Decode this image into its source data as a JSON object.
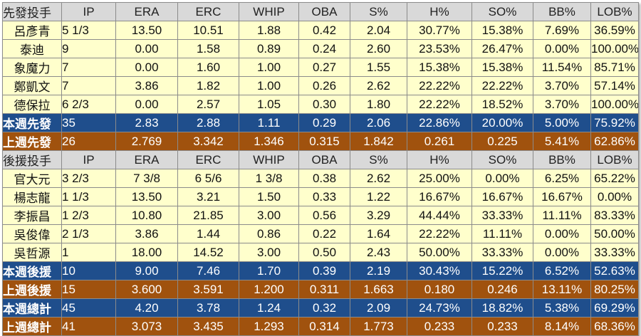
{
  "table": {
    "blocks": [
      {
        "header": [
          "先發投手",
          "IP",
          "ERA",
          "ERC",
          "WHIP",
          "OBA",
          "S%",
          "H%",
          "SO%",
          "BB%",
          "LOB%"
        ],
        "rows": [
          [
            "呂彥青",
            "5 1/3",
            "13.50",
            "10.51",
            "1.88",
            "0.42",
            "2.04",
            "30.77%",
            "15.38%",
            "7.69%",
            "36.59%"
          ],
          [
            "泰迪",
            "9",
            "0.00",
            "1.58",
            "0.89",
            "0.24",
            "2.60",
            "23.53%",
            "26.47%",
            "0.00%",
            "100.00%"
          ],
          [
            "象魔力",
            "7",
            "0.00",
            "1.60",
            "1.00",
            "0.27",
            "1.55",
            "15.38%",
            "15.38%",
            "11.54%",
            "85.71%"
          ],
          [
            "鄭凱文",
            "7",
            "3.86",
            "1.82",
            "1.00",
            "0.26",
            "2.62",
            "22.22%",
            "22.22%",
            "3.70%",
            "57.14%"
          ],
          [
            "德保拉",
            "6 2/3",
            "0.00",
            "2.57",
            "1.05",
            "0.30",
            "1.80",
            "22.22%",
            "18.52%",
            "3.70%",
            "100.00%"
          ]
        ],
        "current": [
          "本週先發",
          "35",
          "2.83",
          "2.88",
          "1.11",
          "0.29",
          "2.06",
          "22.86%",
          "20.00%",
          "5.00%",
          "75.92%"
        ],
        "previous": [
          "上週先發",
          "26",
          "2.769",
          "3.342",
          "1.346",
          "0.315",
          "1.842",
          "0.261",
          "0.225",
          "5.41%",
          "62.86%"
        ]
      },
      {
        "header": [
          "後援投手",
          "IP",
          "ERA",
          "ERC",
          "WHIP",
          "OBA",
          "S%",
          "H%",
          "SO%",
          "BB%",
          "LOB%"
        ],
        "rows": [
          [
            "官大元",
            "3 2/3",
            "7 3/8",
            "6 5/6",
            "1 3/8",
            "0.38",
            "2.62",
            "25.00%",
            "0.00%",
            "6.25%",
            "65.22%"
          ],
          [
            "楊志龍",
            "1 1/3",
            "13.50",
            "3.21",
            "1.50",
            "0.33",
            "1.22",
            "16.67%",
            "16.67%",
            "16.67%",
            "0.00%"
          ],
          [
            "李振昌",
            "1 2/3",
            "10.80",
            "21.85",
            "3.00",
            "0.56",
            "3.29",
            "44.44%",
            "33.33%",
            "11.11%",
            "83.33%"
          ],
          [
            "吳俊偉",
            "2 1/3",
            "3.86",
            "1.44",
            "0.86",
            "0.22",
            "1.64",
            "22.22%",
            "11.11%",
            "0.00%",
            "50.00%"
          ],
          [
            "吳哲源",
            "1",
            "18.00",
            "14.52",
            "3.00",
            "0.50",
            "2.43",
            "50.00%",
            "33.33%",
            "0.00%",
            "33.33%"
          ]
        ],
        "current": [
          "本週後援",
          "10",
          "9.00",
          "7.46",
          "1.70",
          "0.39",
          "2.19",
          "30.43%",
          "15.22%",
          "6.52%",
          "52.63%"
        ],
        "previous": [
          "上週後援",
          "15",
          "3.600",
          "3.591",
          "1.200",
          "0.311",
          "1.663",
          "0.180",
          "0.246",
          "13.11%",
          "80.25%"
        ]
      }
    ],
    "total_current": [
      "本週總計",
      "45",
      "4.20",
      "3.78",
      "1.24",
      "0.32",
      "2.09",
      "24.73%",
      "18.82%",
      "5.38%",
      "69.29%"
    ],
    "total_previous": [
      "上週總計",
      "41",
      "3.073",
      "3.435",
      "1.293",
      "0.314",
      "1.773",
      "0.233",
      "0.233",
      "8.14%",
      "68.36%"
    ]
  },
  "colors": {
    "header_bg": "#d9d9d9",
    "row_bg": "#ffffcc",
    "current_week_bg": "#1f4e8c",
    "previous_week_bg": "#a0520e"
  }
}
